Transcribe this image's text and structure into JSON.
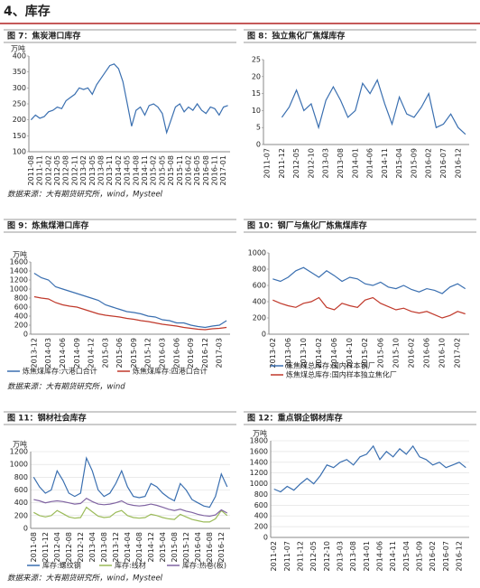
{
  "section_title": "4、库存",
  "sources": [
    "数据来源：大有期货研究所，wind，Mysteel",
    "数据来源：大有期货研究所，wind",
    "数据来源：大有期货研究所，wind，Mysteel"
  ],
  "chart_data": [
    {
      "type": "line",
      "title": "图 7：焦炭港口库存",
      "unit": "万吨",
      "ylim": [
        100,
        400
      ],
      "yticks": [
        100,
        150,
        200,
        250,
        300,
        350,
        400
      ],
      "grid": false,
      "categories": [
        "2011-08",
        null,
        "2011-11",
        null,
        "2012-02",
        null,
        "2012-05",
        null,
        "2012-08",
        null,
        "2012-11",
        null,
        "2013-02",
        null,
        "2013-05",
        null,
        "2013-08",
        null,
        "2013-11",
        null,
        "2014-02",
        null,
        "2014-05",
        null,
        "2014-08",
        null,
        "2014-11",
        null,
        "2015-02",
        null,
        "2015-05",
        null,
        "2015-08",
        null,
        "2015-11",
        null,
        "2016-02",
        null,
        "2016-05",
        null,
        "2016-08",
        null,
        "2016-11",
        null,
        "2017-01",
        null
      ],
      "series": [
        {
          "color": "#3a6fb0",
          "values": [
            200,
            215,
            205,
            210,
            225,
            230,
            240,
            235,
            260,
            270,
            280,
            300,
            295,
            300,
            280,
            310,
            330,
            350,
            370,
            375,
            360,
            320,
            250,
            180,
            230,
            240,
            215,
            245,
            250,
            240,
            220,
            160,
            200,
            240,
            250,
            225,
            240,
            230,
            250,
            230,
            220,
            240,
            235,
            215,
            240,
            245
          ]
        }
      ]
    },
    {
      "type": "line",
      "title": "图 8：独立焦化厂焦煤库存",
      "ylim": [
        0,
        25
      ],
      "yticks": [
        0,
        5,
        10,
        15,
        20,
        25
      ],
      "grid": false,
      "categories": [
        "2011-07",
        null,
        "2011-12",
        null,
        "2012-05",
        null,
        "2012-10",
        null,
        "2013-03",
        null,
        "2013-08",
        null,
        "2014-01",
        null,
        "2014-06",
        null,
        "2014-11",
        null,
        "2015-04",
        null,
        "2015-09",
        null,
        "2016-02",
        null,
        "2016-07",
        null,
        "2016-12",
        null
      ],
      "series": [
        {
          "color": "#3a6fb0",
          "values": [
            null,
            null,
            8,
            11,
            16,
            10,
            12,
            5,
            13,
            17,
            13,
            8,
            10,
            18,
            15,
            19,
            12,
            6,
            14,
            9,
            8,
            11,
            15,
            5,
            6,
            9,
            5,
            3
          ]
        }
      ]
    },
    {
      "type": "line",
      "title": "图 9：炼焦煤港口库存",
      "unit": "万吨",
      "ylim": [
        0,
        1600
      ],
      "yticks": [
        0,
        200,
        400,
        600,
        800,
        1000,
        1200,
        1400,
        1600
      ],
      "grid": false,
      "legend": "bottom",
      "categories": [
        "2013-12",
        null,
        "2014-03",
        null,
        "2014-06",
        null,
        "2014-09",
        null,
        "2014-12",
        null,
        "2015-03",
        null,
        "2015-06",
        null,
        "2015-09",
        null,
        "2015-12",
        null,
        "2016-03",
        null,
        "2016-06",
        null,
        "2016-09",
        null,
        "2016-12",
        null,
        "2017-03",
        null
      ],
      "series": [
        {
          "name": "炼焦煤库存:六港口合计",
          "color": "#3a6fb0",
          "values": [
            1350,
            1250,
            1200,
            1050,
            1000,
            950,
            900,
            850,
            800,
            750,
            650,
            600,
            550,
            500,
            480,
            450,
            400,
            380,
            320,
            300,
            250,
            250,
            200,
            170,
            150,
            180,
            200,
            300
          ]
        },
        {
          "name": "炼焦煤库存:四港口合计",
          "color": "#c0392b",
          "values": [
            830,
            800,
            780,
            700,
            650,
            620,
            600,
            550,
            500,
            450,
            420,
            400,
            380,
            350,
            330,
            300,
            280,
            250,
            220,
            200,
            180,
            150,
            130,
            110,
            100,
            120,
            130,
            150
          ]
        }
      ]
    },
    {
      "type": "line",
      "title": "图 10：钢厂与焦化厂炼焦煤库存",
      "ylim": [
        0,
        1000
      ],
      "yticks": [
        0,
        200,
        400,
        600,
        800,
        1000
      ],
      "grid": false,
      "legend": "bottom",
      "categories": [
        "2013-02",
        null,
        "2013-06",
        null,
        "2013-10",
        null,
        "2014-02",
        null,
        "2014-06",
        null,
        "2014-10",
        null,
        "2015-02",
        null,
        "2015-06",
        null,
        "2015-10",
        null,
        "2016-02",
        null,
        "2016-06",
        null,
        "2016-10",
        null,
        "2017-02",
        null
      ],
      "series": [
        {
          "name": "炼焦煤总库存:国内样本钢厂",
          "color": "#3a6fb0",
          "values": [
            680,
            650,
            700,
            780,
            820,
            760,
            700,
            780,
            720,
            650,
            700,
            680,
            620,
            600,
            640,
            580,
            560,
            600,
            550,
            520,
            560,
            540,
            500,
            580,
            620,
            560
          ]
        },
        {
          "name": "炼焦煤总库存:国内样本独立焦化厂",
          "color": "#c0392b",
          "values": [
            420,
            380,
            350,
            330,
            380,
            400,
            450,
            330,
            300,
            380,
            350,
            330,
            420,
            450,
            380,
            340,
            300,
            320,
            280,
            260,
            280,
            240,
            200,
            230,
            280,
            250
          ]
        }
      ]
    },
    {
      "type": "line",
      "title": "图 11：钢材社会库存",
      "unit": "万吨",
      "ylim": [
        0,
        1200
      ],
      "yticks": [
        0,
        200,
        400,
        600,
        800,
        1000,
        1200
      ],
      "grid": true,
      "legend": "bottom",
      "categories": [
        "2011-08",
        null,
        "2011-12",
        null,
        "2012-04",
        null,
        "2012-08",
        null,
        "2012-12",
        null,
        "2013-04",
        null,
        "2013-08",
        null,
        "2013-12",
        null,
        "2014-04",
        null,
        "2014-08",
        null,
        "2014-12",
        null,
        "2015-04",
        null,
        "2015-08",
        null,
        "2015-12",
        null,
        "2016-04",
        null,
        "2016-08",
        null,
        "2016-12",
        null
      ],
      "series": [
        {
          "name": "库存:螺纹钢",
          "color": "#3a6fb0",
          "values": [
            800,
            650,
            550,
            600,
            900,
            750,
            550,
            500,
            550,
            1100,
            900,
            600,
            500,
            550,
            700,
            900,
            650,
            500,
            480,
            500,
            700,
            650,
            550,
            480,
            430,
            700,
            600,
            450,
            400,
            350,
            330,
            500,
            850,
            650
          ]
        },
        {
          "name": "库存:线材",
          "color": "#9bbb59",
          "values": [
            250,
            200,
            180,
            200,
            280,
            230,
            180,
            160,
            170,
            330,
            260,
            190,
            170,
            180,
            250,
            280,
            200,
            170,
            160,
            170,
            220,
            200,
            170,
            150,
            140,
            220,
            180,
            140,
            120,
            100,
            100,
            150,
            280,
            200
          ]
        },
        {
          "name": "库存:热卷(板)",
          "color": "#8064a2",
          "values": [
            450,
            430,
            400,
            420,
            430,
            420,
            400,
            380,
            390,
            470,
            420,
            380,
            370,
            380,
            400,
            430,
            380,
            360,
            350,
            360,
            380,
            360,
            330,
            300,
            280,
            300,
            270,
            250,
            220,
            200,
            190,
            210,
            290,
            240
          ]
        }
      ]
    },
    {
      "type": "line",
      "title": "图 12：重点钢企钢材库存",
      "unit": "万吨",
      "ylim": [
        0,
        1800
      ],
      "yticks": [
        0,
        200,
        400,
        600,
        800,
        1000,
        1200,
        1400,
        1600,
        1800
      ],
      "grid": true,
      "categories": [
        "2011-02",
        null,
        "2011-07",
        null,
        "2011-12",
        null,
        "2012-05",
        null,
        "2012-10",
        null,
        "2013-03",
        null,
        "2013-08",
        null,
        "2014-01",
        null,
        "2014-06",
        null,
        "2014-11",
        null,
        "2015-04",
        null,
        "2015-09",
        null,
        "2016-02",
        null,
        "2016-07",
        null,
        "2016-12",
        null
      ],
      "series": [
        {
          "color": "#3a6fb0",
          "values": [
            900,
            850,
            950,
            880,
            1000,
            1100,
            1000,
            1150,
            1350,
            1300,
            1400,
            1450,
            1350,
            1500,
            1550,
            1700,
            1450,
            1600,
            1500,
            1650,
            1550,
            1700,
            1500,
            1450,
            1350,
            1400,
            1300,
            1350,
            1400,
            1300
          ]
        }
      ]
    }
  ]
}
